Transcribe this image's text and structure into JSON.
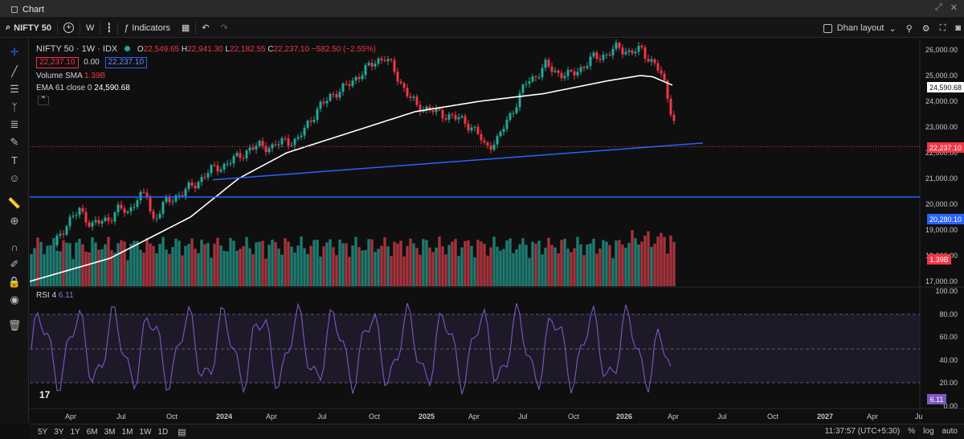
{
  "window": {
    "title": "Chart"
  },
  "toolbar": {
    "symbol": "NIFTY 50",
    "interval": "W",
    "indicators_label": "Indicators",
    "layout_name": "Dhan layout"
  },
  "legend": {
    "title": "NIFTY 50 · 1W · IDX",
    "o_label": "O",
    "o": "22,549.65",
    "h_label": "H",
    "h": "22,941.30",
    "l_label": "L",
    "l": "22,182.55",
    "c_label": "C",
    "c": "22,237.10",
    "change": "−582.50 (−2.55%)",
    "sell_price": "22,237.10",
    "spread": "0.00",
    "buy_price": "22,237.10",
    "volume_label": "Volume SMA",
    "volume_value": "1.39B",
    "ema_label": "EMA 61 close 0",
    "ema_value": "24,590.68",
    "rsi_label": "RSI 4",
    "rsi_value": "6.11"
  },
  "price_axis": [
    "26,000.00",
    "25,000.00",
    "24,000.00",
    "23,000.00",
    "22,000.00",
    "21,000.00",
    "20,000.00",
    "19,000.00",
    "18,000.00",
    "17,000.00"
  ],
  "rsi_axis": [
    "100.00",
    "80.00",
    "60.00",
    "40.00",
    "20.00",
    "0.00"
  ],
  "tags": {
    "ema": "24,590.68",
    "last": "22,237.10",
    "hline": "20,280.10",
    "volume": "1.39B",
    "rsi": "6.11"
  },
  "time_axis": [
    "Apr",
    "Jul",
    "Oct",
    "2024",
    "Apr",
    "Jul",
    "Oct",
    "2025",
    "Apr",
    "Jul",
    "Oct",
    "2026",
    "Apr",
    "Jul",
    "Oct",
    "2027",
    "Apr",
    "Ju"
  ],
  "ranges": [
    "5Y",
    "3Y",
    "1Y",
    "6M",
    "3M",
    "1M",
    "1W",
    "1D"
  ],
  "status": {
    "time": "11:37:57 (UTC+5:30)",
    "pct": "%",
    "log": "log",
    "auto": "auto"
  },
  "colors": {
    "up": "#26a69a",
    "down": "#f23645",
    "ema": "#ffffff",
    "trend": "#2962ff",
    "rsi": "#7e57c2",
    "bg": "#0f0f0f"
  },
  "chart_data": {
    "type": "candlestick",
    "price_ylim": [
      16800,
      26400
    ],
    "rsi_ylim": [
      0,
      100
    ],
    "ema_last": 24590.68,
    "horizontal_line": 20280.1,
    "last_close": 22237.1
  }
}
